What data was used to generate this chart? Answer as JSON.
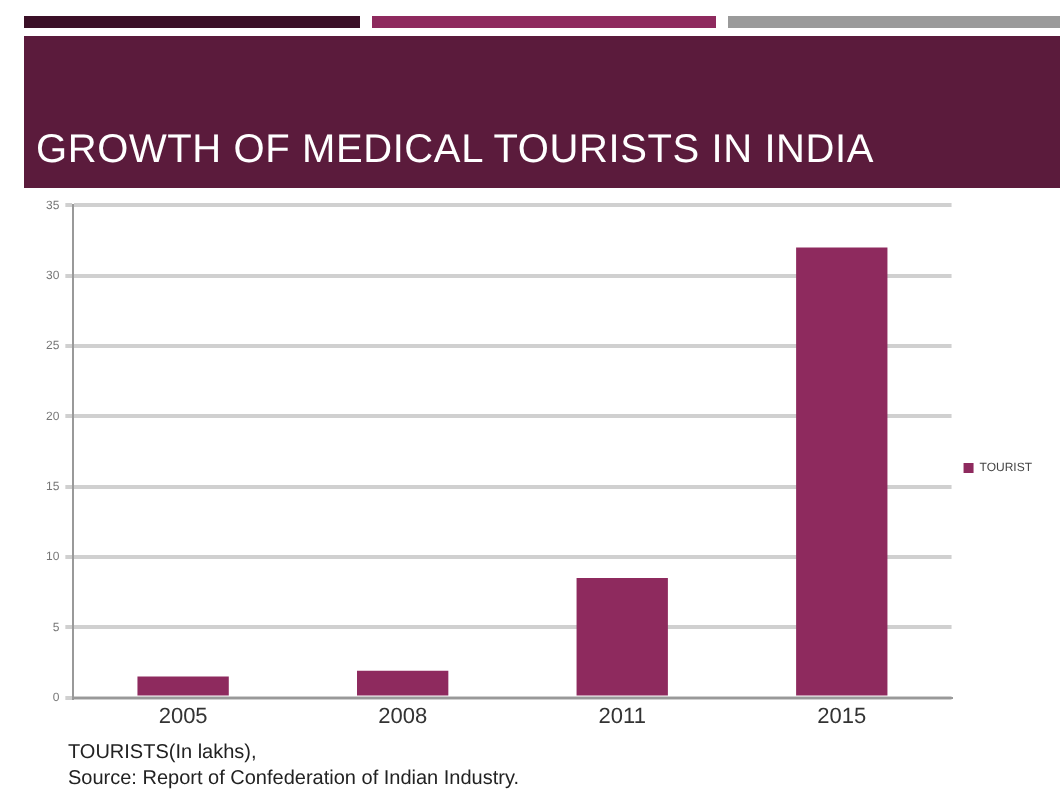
{
  "chart_data": {
    "type": "bar",
    "title": "GROWTH OF MEDICAL TOURISTS IN INDIA",
    "categories": [
      "2005",
      "2008",
      "2011",
      "2015"
    ],
    "series": [
      {
        "name": "TOURIST",
        "color": "#8e2a5e",
        "values": [
          1.5,
          1.9,
          8.5,
          32
        ]
      }
    ],
    "ylim": [
      0,
      35
    ],
    "yticks": [
      0,
      5,
      10,
      15,
      20,
      25,
      30,
      35
    ],
    "grid": "y",
    "legend": "right",
    "annotations": [
      "TOURISTS(In lakhs),",
      "Source: Report of Confederation of Indian Industry."
    ]
  }
}
